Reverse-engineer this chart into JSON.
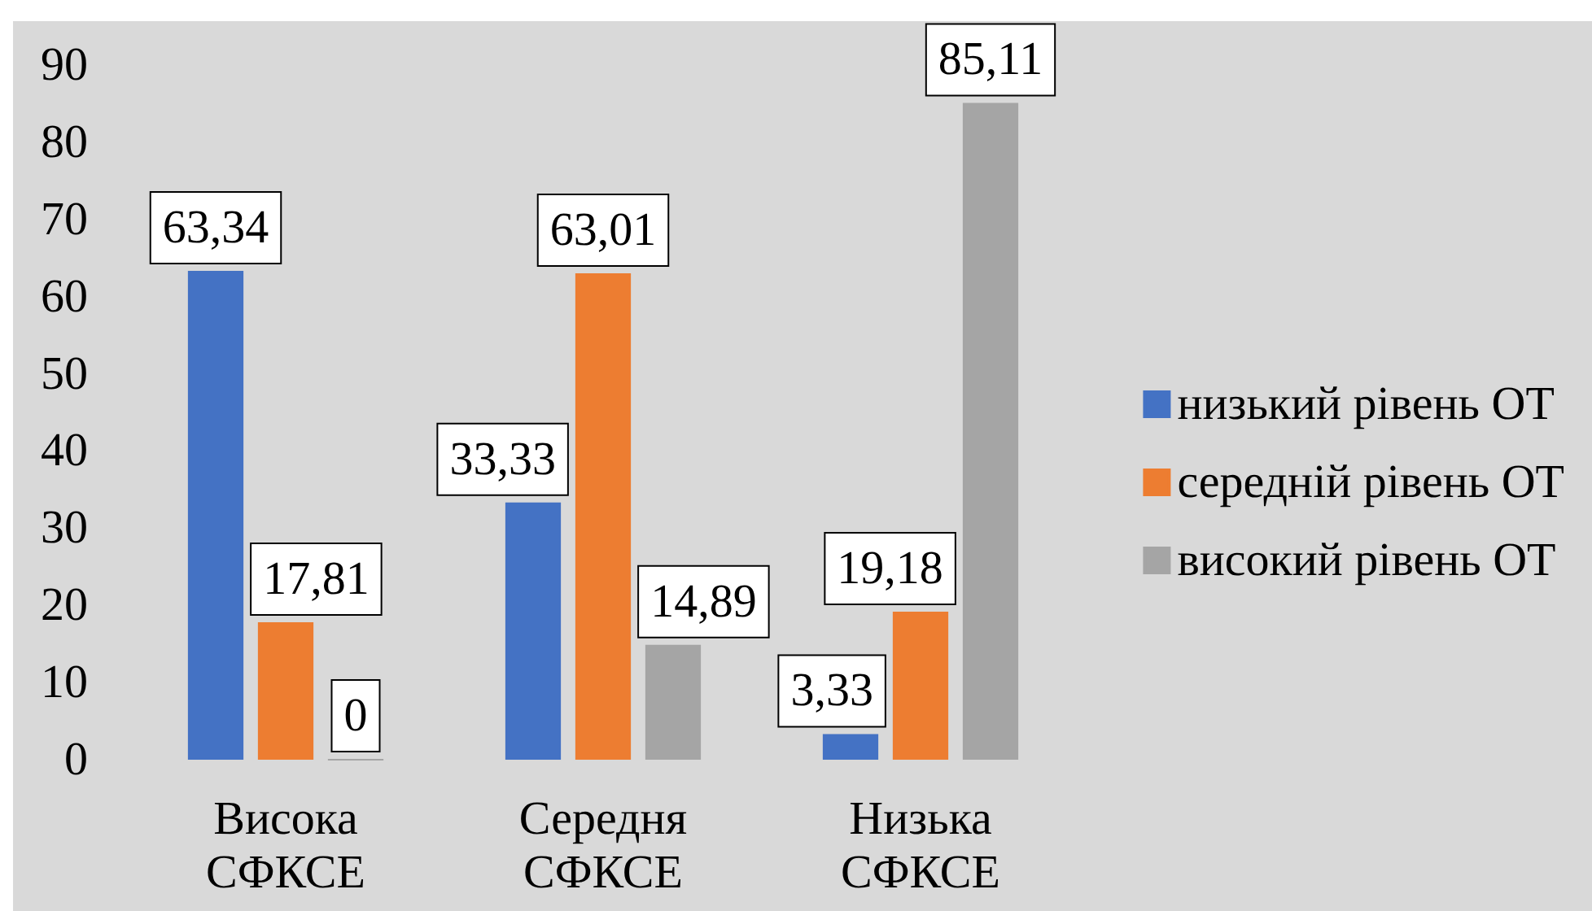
{
  "chart_data": {
    "type": "bar",
    "categories": [
      "Висока СФКСЕ",
      "Середня СФКСЕ",
      "Низька СФКСЕ"
    ],
    "series": [
      {
        "name": "низький рівень ОТ",
        "color": "#4472c4",
        "values": [
          63.34,
          33.33,
          3.33
        ],
        "value_labels": [
          "63,34",
          "33,33",
          "3,33"
        ]
      },
      {
        "name": "середній рівень ОТ",
        "color": "#ed7d31",
        "values": [
          17.81,
          63.01,
          19.18
        ],
        "value_labels": [
          "17,81",
          "63,01",
          "19,18"
        ]
      },
      {
        "name": "високий рівень ОТ",
        "color": "#a5a5a5",
        "values": [
          0,
          14.89,
          85.11
        ],
        "value_labels": [
          "0",
          "14,89",
          "85,11"
        ]
      }
    ],
    "ylim": [
      0,
      90
    ],
    "yticks": [
      0,
      10,
      20,
      30,
      40,
      50,
      60,
      70,
      80,
      90
    ],
    "grid": false,
    "legend": "right"
  }
}
